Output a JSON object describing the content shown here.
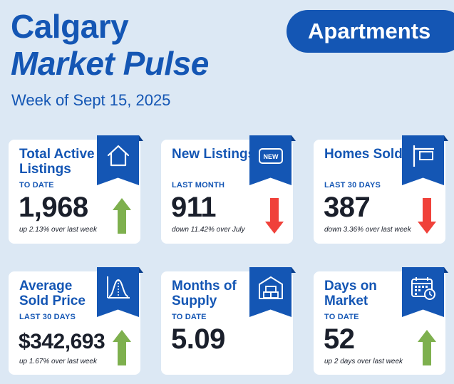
{
  "header": {
    "title_line1": "Calgary",
    "title_line2": "Market Pulse",
    "subtitle": "Week of Sept 15, 2025",
    "badge": "Apartments"
  },
  "colors": {
    "brand_blue": "#1456b4",
    "background": "#dce8f4",
    "up_green": "#7eb04e",
    "down_red": "#f0413a"
  },
  "cards": [
    {
      "title": "Total Active Listings",
      "period": "TO DATE",
      "value": "1,968",
      "change": "up 2.13% over last week",
      "trend": "up",
      "icon": "house-icon"
    },
    {
      "title": "New Listings",
      "period": "LAST MONTH",
      "value": "911",
      "change": "down 11.42% over July",
      "trend": "down",
      "icon": "new-tag-icon",
      "icon_text": "NEW"
    },
    {
      "title": "Homes Sold",
      "period": "LAST 30 DAYS",
      "value": "387",
      "change": "down 3.36% over last week",
      "trend": "down",
      "icon": "sign-post-icon"
    },
    {
      "title": "Average Sold Price",
      "period": "LAST 30 DAYS",
      "value": "$342,693",
      "change": "up 1.67% over last week",
      "trend": "up",
      "icon": "bell-curve-icon"
    },
    {
      "title": "Months of Supply",
      "period": "TO DATE",
      "value": "5.09",
      "change": "",
      "trend": "none",
      "icon": "warehouse-boxes-icon"
    },
    {
      "title": "Days on Market",
      "period": "TO DATE",
      "value": "52",
      "change": "up 2 days over last week",
      "trend": "up",
      "icon": "calendar-clock-icon"
    }
  ]
}
